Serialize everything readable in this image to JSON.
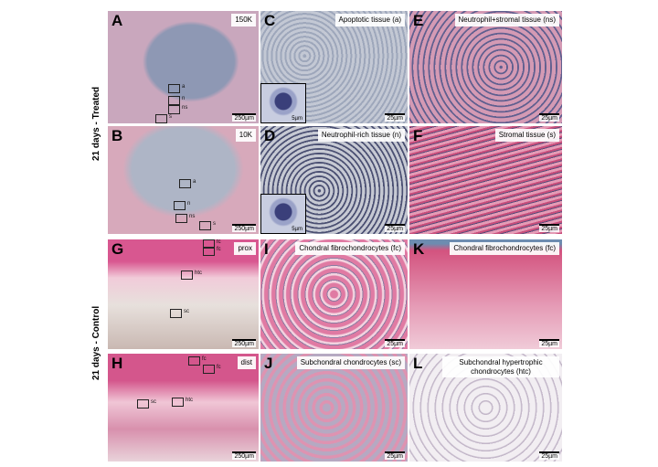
{
  "side_labels": [
    "21 days - Treated",
    "21 days - Control"
  ],
  "panels": [
    {
      "letter": "A",
      "caption": "150K",
      "scale": "250µm",
      "boxes": [
        "a",
        "n",
        "ns",
        "s"
      ]
    },
    {
      "letter": "C",
      "caption": "Apoptotic tissue (a)",
      "scale": "25µm",
      "inset": "5µm"
    },
    {
      "letter": "E",
      "caption": "Neutrophil+stromal tissue (ns)",
      "scale": "25µm"
    },
    {
      "letter": "B",
      "caption": "10K",
      "scale": "250µm",
      "boxes": [
        "a",
        "n",
        "ns",
        "s"
      ]
    },
    {
      "letter": "D",
      "caption": "Neutrophil-rich tissue (n)",
      "scale": "25µm",
      "inset": "5µm"
    },
    {
      "letter": "F",
      "caption": "Stromal tissue (s)",
      "scale": "25µm"
    },
    {
      "letter": "G",
      "caption": "prox",
      "scale": "250µm",
      "boxes": [
        "fc",
        "fc",
        "htc",
        "sc"
      ]
    },
    {
      "letter": "I",
      "caption": "Chondral fibrochondrocytes (fc)",
      "scale": "25µm"
    },
    {
      "letter": "K",
      "caption": "Chondral fibrochondrocytes (fc)",
      "scale": "25µm"
    },
    {
      "letter": "H",
      "caption": "dist",
      "scale": "250µm",
      "boxes": [
        "fc",
        "fc",
        "sc",
        "htc"
      ]
    },
    {
      "letter": "J",
      "caption": "Subchondral chondrocytes (sc)",
      "scale": "25µm"
    },
    {
      "letter": "L",
      "caption": "Subchondral hypertrophic chondrocytes (htc)",
      "scale": "25µm"
    }
  ]
}
